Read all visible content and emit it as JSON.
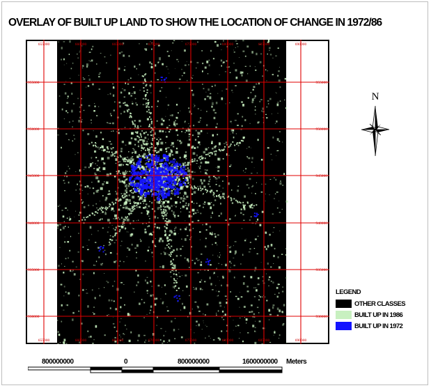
{
  "title": "OVERLAY OF BUILT UP LAND TO SHOW THE LOCATION OF CHANGE IN 1972/86",
  "grid": {
    "x_labels": [
      "655000",
      "660000",
      "665000",
      "670000",
      "675000",
      "680000",
      "685000",
      "690000"
    ],
    "y_labels": [
      "955000",
      "950000",
      "945000",
      "940000",
      "935000",
      "930000",
      "925000"
    ],
    "line_color": "#e00000",
    "label_color": "#cc0000"
  },
  "north": {
    "label": "N"
  },
  "legend": {
    "title": "LEGEND",
    "items": [
      {
        "label": "OTHER CLASSES",
        "color": "#000000"
      },
      {
        "label": "BUILT UP IN 1986",
        "color": "#c8f0c0"
      },
      {
        "label": "BUILT UP IN 1972",
        "color": "#1414ff"
      }
    ]
  },
  "scale_bar": {
    "labels": [
      "800000000",
      "0",
      "800000000",
      "1600000000"
    ],
    "unit": "Meters"
  },
  "colors": {
    "background_image": "#000000",
    "built_up_1986": "#c8f0c0",
    "built_up_1972": "#1414ff"
  }
}
